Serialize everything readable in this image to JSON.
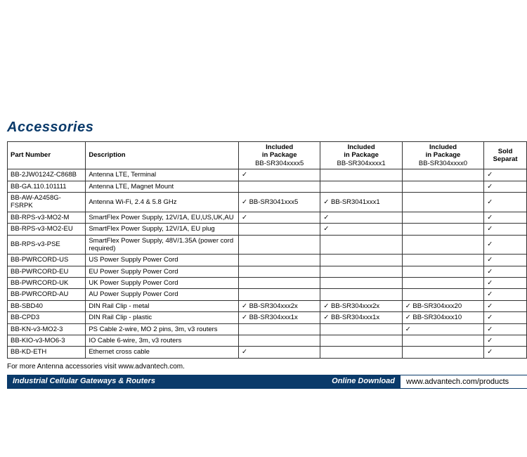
{
  "title": "Accessories",
  "columns": {
    "pn": "Part Number",
    "desc": "Description",
    "inc_line1": "Included",
    "inc_line2": "in Package",
    "pkg5": "BB-SR304xxxx5",
    "pkg1": "BB-SR304xxxx1",
    "pkg0": "BB-SR304xxxx0",
    "sold_line1": "Sold",
    "sold_line2": "Separat"
  },
  "check": "✓",
  "rows": [
    {
      "pn": "BB-2JW0124Z-C868B",
      "desc": "Antenna LTE, Terminal",
      "p5": "✓",
      "p1": "",
      "p0": "",
      "sold": "✓"
    },
    {
      "pn": "BB-GA.110.101111",
      "desc": "Antenna LTE, Magnet Mount",
      "p5": "",
      "p1": "",
      "p0": "",
      "sold": "✓"
    },
    {
      "pn": "BB-AW-A2458G-FSRPK",
      "desc": "Antenna Wi-Fi, 2.4 & 5.8 GHz",
      "p5": "✓   BB-SR3041xxx5",
      "p1": "✓   BB-SR3041xxx1",
      "p0": "",
      "sold": "✓"
    },
    {
      "pn": "BB-RPS-v3-MO2-M",
      "desc": "SmartFlex Power Supply, 12V/1A, EU,US,UK,AU",
      "p5": "✓",
      "p1": "✓",
      "p0": "",
      "sold": "✓"
    },
    {
      "pn": "BB-RPS-v3-MO2-EU",
      "desc": "SmartFlex Power Supply, 12V/1A, EU plug",
      "p5": "",
      "p1": "✓",
      "p0": "",
      "sold": "✓"
    },
    {
      "pn": "BB-RPS-v3-PSE",
      "desc": "SmartFlex Power Supply, 48V/1.35A (power cord required)",
      "p5": "",
      "p1": "",
      "p0": "",
      "sold": "✓"
    },
    {
      "pn": "BB-PWRCORD-US",
      "desc": "US Power Supply Power Cord",
      "p5": "",
      "p1": "",
      "p0": "",
      "sold": "✓"
    },
    {
      "pn": "BB-PWRCORD-EU",
      "desc": "EU Power Supply Power Cord",
      "p5": "",
      "p1": "",
      "p0": "",
      "sold": "✓"
    },
    {
      "pn": "BB-PWRCORD-UK",
      "desc": "UK Power Supply Power Cord",
      "p5": "",
      "p1": "",
      "p0": "",
      "sold": "✓"
    },
    {
      "pn": "BB-PWRCORD-AU",
      "desc": "AU Power Supply Power Cord",
      "p5": "",
      "p1": "",
      "p0": "",
      "sold": "✓"
    },
    {
      "pn": "BB-SBD40",
      "desc": "DIN Rail Clip - metal",
      "p5": "✓   BB-SR304xxx2x",
      "p1": "✓   BB-SR304xxx2x",
      "p0": "✓   BB-SR304xxx20",
      "sold": "✓"
    },
    {
      "pn": "BB-CPD3",
      "desc": "DIN Rail Clip - plastic",
      "p5": "✓   BB-SR304xxx1x",
      "p1": "✓   BB-SR304xxx1x",
      "p0": "✓   BB-SR304xxx10",
      "sold": "✓"
    },
    {
      "pn": "BB-KN-v3-MO2-3",
      "desc": "PS Cable 2-wire, MO 2 pins, 3m, v3 routers",
      "p5": "",
      "p1": "",
      "p0": "✓",
      "sold": "✓"
    },
    {
      "pn": "BB-KIO-v3-MO6-3",
      "desc": "IO Cable 6-wire, 3m, v3 routers",
      "p5": "",
      "p1": "",
      "p0": "",
      "sold": "✓"
    },
    {
      "pn": "BB-KD-ETH",
      "desc": "Ethernet cross cable",
      "p5": "✓",
      "p1": "",
      "p0": "",
      "sold": "✓"
    }
  ],
  "note": "For more Antenna accessories visit www.advantech.com.",
  "footer": {
    "left": "Industrial Cellular Gateways & Routers",
    "mid": "Online Download",
    "right": "www.advantech.com/products"
  }
}
